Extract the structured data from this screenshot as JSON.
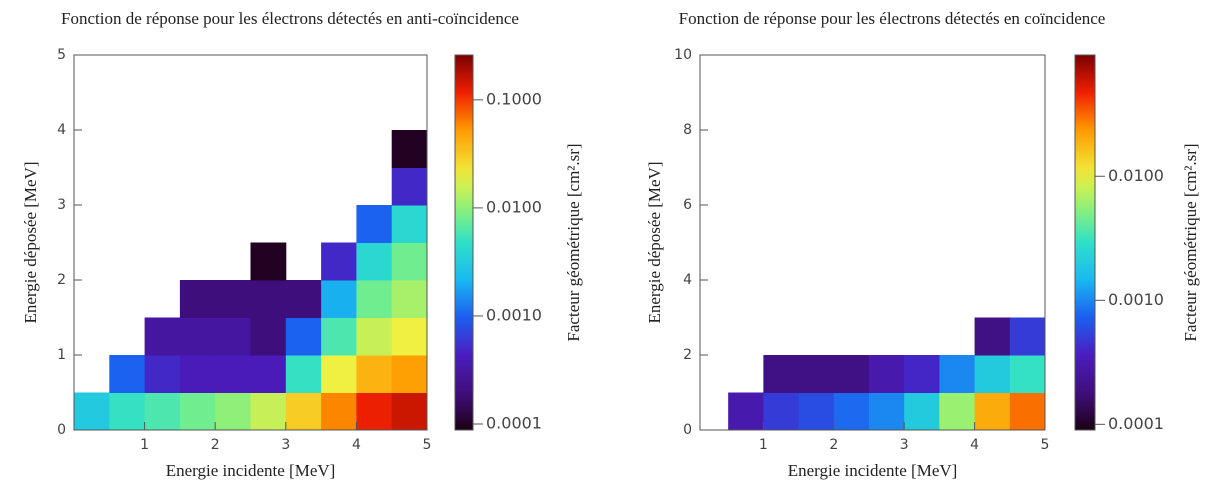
{
  "chart_data": [
    {
      "type": "heatmap",
      "title": "Fonction de réponse pour les électrons détectés en anti-coïncidence",
      "xlabel": "Energie incidente [MeV]",
      "ylabel": "Energie déposée [MeV]",
      "colorbar_label": "Facteur géométrique [cm².sr]",
      "xlim": [
        0,
        5
      ],
      "ylim": [
        0,
        5
      ],
      "xticks": [
        1,
        2,
        3,
        4,
        5
      ],
      "yticks": [
        0,
        1,
        2,
        3,
        4,
        5
      ],
      "zscale": "log",
      "zlim": [
        8.8e-05,
        0.26
      ],
      "zticks": [
        0.0001,
        {
          "value": 0.001,
          "label": "0.0010"
        },
        {
          "value": 0.01,
          "label": "0.0100"
        },
        {
          "value": 0.1,
          "label": "0.1000"
        }
      ],
      "xbins": [
        0,
        0.5,
        1,
        1.5,
        2,
        2.5,
        3,
        3.5,
        4,
        4.5,
        5
      ],
      "ybins": [
        0,
        0.5,
        1,
        1.5,
        2,
        2.5,
        3,
        3.5,
        4
      ],
      "z": [
        [
          0.003,
          0.005,
          0.006,
          0.008,
          0.01,
          0.015,
          0.03,
          0.06,
          0.12,
          0.15
        ],
        [
          null,
          0.001,
          0.0005,
          0.0004,
          0.0004,
          0.0004,
          0.005,
          0.02,
          0.04,
          0.05
        ],
        [
          null,
          null,
          0.0003,
          0.0003,
          0.0003,
          0.0002,
          0.001,
          0.006,
          0.015,
          0.02
        ],
        [
          null,
          null,
          null,
          0.0002,
          0.0002,
          0.0002,
          0.0002,
          0.002,
          0.008,
          0.012
        ],
        [
          null,
          null,
          null,
          null,
          null,
          0.0001,
          null,
          0.0005,
          0.004,
          0.008
        ],
        [
          null,
          null,
          null,
          null,
          null,
          null,
          null,
          null,
          0.001,
          0.004
        ],
        [
          null,
          null,
          null,
          null,
          null,
          null,
          null,
          null,
          null,
          0.0005
        ],
        [
          null,
          null,
          null,
          null,
          null,
          null,
          null,
          null,
          null,
          0.0001
        ]
      ]
    },
    {
      "type": "heatmap",
      "title": "Fonction de réponse pour les électrons détectés en coïncidence",
      "xlabel": "Energie incidente [MeV]",
      "ylabel": "Energie déposée [MeV]",
      "colorbar_label": "Facteur géométrique [cm².sr]",
      "xlim": [
        0.1,
        5
      ],
      "ylim": [
        0,
        10
      ],
      "xticks": [
        1,
        2,
        3,
        4,
        5
      ],
      "yticks": [
        0,
        2,
        4,
        6,
        8,
        10
      ],
      "zscale": "log",
      "zlim": [
        9e-05,
        0.095
      ],
      "zticks": [
        0.0001,
        {
          "value": 0.001,
          "label": "0.0010"
        },
        {
          "value": 0.01,
          "label": "0.0100"
        }
      ],
      "xbins": [
        0.5,
        1,
        1.5,
        2,
        2.5,
        3,
        3.5,
        4,
        4.5,
        5
      ],
      "ybins": [
        0,
        1,
        2,
        3
      ],
      "z": [
        [
          0.0003,
          0.0005,
          0.0006,
          0.0008,
          0.001,
          0.002,
          0.006,
          0.02,
          0.03
        ],
        [
          null,
          0.0002,
          0.0002,
          0.0002,
          0.0003,
          0.0004,
          0.001,
          0.002,
          0.003
        ],
        [
          null,
          null,
          null,
          null,
          null,
          null,
          null,
          0.0002,
          0.0005
        ]
      ]
    }
  ]
}
